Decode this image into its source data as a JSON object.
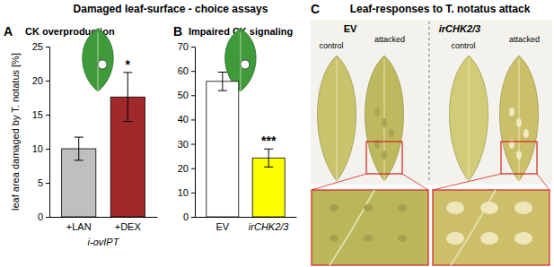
{
  "header": {
    "title": "Damaged leaf-surface - choice assays"
  },
  "chart_data": [
    {
      "type": "bar",
      "panel": "A",
      "title": "CK overproduction",
      "categories": [
        "+LAN",
        "+DEX"
      ],
      "values": [
        10,
        17.6
      ],
      "errors": [
        1.7,
        3.6
      ],
      "colors": [
        "#bfbfbf",
        "#a1282b"
      ],
      "ylim": [
        0,
        25
      ],
      "yticks": [
        0,
        5,
        10,
        15,
        20,
        25
      ],
      "y_label": "leaf area damaged by T. notatus [%]",
      "x_label": "i-ovIPT",
      "annotations": [
        {
          "text": "*",
          "category": "+DEX"
        }
      ]
    },
    {
      "type": "bar",
      "panel": "B",
      "title": "Impaired CK signaling",
      "categories": [
        "EV",
        "irCHK2/3"
      ],
      "values": [
        55.7,
        24.2
      ],
      "errors": [
        3.8,
        3.7
      ],
      "colors": [
        "#ffffff",
        "#ffff00"
      ],
      "ylim": [
        0,
        70
      ],
      "yticks": [
        0,
        10,
        20,
        30,
        40,
        50,
        60,
        70
      ],
      "annotations": [
        {
          "text": "***",
          "category": "irCHK2/3"
        }
      ]
    }
  ],
  "panel_c": {
    "panel": "C",
    "title": "Leaf-responses to T. notatus attack",
    "groups": [
      {
        "label": "EV",
        "leaves": [
          "control",
          "attacked"
        ]
      },
      {
        "label": "irCHK2/3",
        "leaves": [
          "control",
          "attacked"
        ]
      }
    ]
  }
}
